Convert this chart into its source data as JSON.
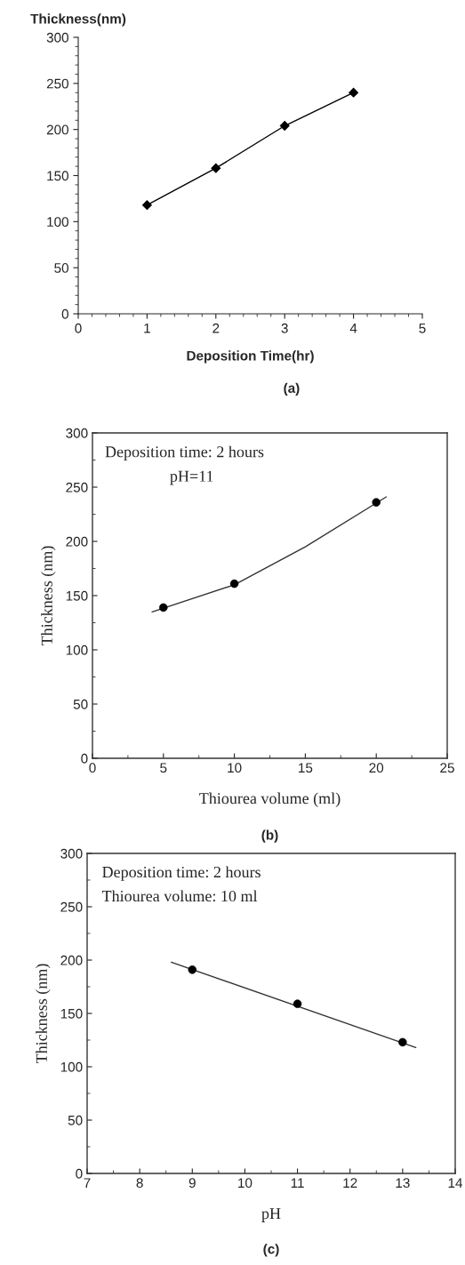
{
  "chart_data": [
    {
      "type": "line",
      "ylabel": "Thickness(nm)",
      "xlabel": "Deposition Time(hr)",
      "x": [
        1,
        2,
        3,
        4
      ],
      "marker": "diamond",
      "series": [
        {
          "color": "#000000",
          "values": [
            118,
            158,
            204,
            240
          ]
        }
      ],
      "xlim": [
        0,
        5
      ],
      "xticks": [
        0,
        1,
        2,
        3,
        4,
        5
      ],
      "ylim": [
        0,
        300
      ],
      "yticks": [
        0,
        50,
        100,
        150,
        200,
        250,
        300
      ],
      "grid": false,
      "legend": false,
      "annotations": [
        "(a)"
      ]
    },
    {
      "type": "scatter",
      "ylabel": "Thickness (nm)",
      "xlabel": "Thiourea volume (ml)",
      "x": [
        5,
        10,
        20
      ],
      "marker": "circle",
      "series": [
        {
          "color": "#000000",
          "values": [
            139,
            161,
            236
          ]
        },
        {
          "type": "line",
          "marker": "none",
          "color": "#333333",
          "x": [
            4.2,
            10,
            15,
            20.7
          ],
          "values": [
            135,
            160,
            195,
            241
          ]
        }
      ],
      "xlim": [
        0,
        25
      ],
      "xticks": [
        0,
        5,
        10,
        15,
        20,
        25
      ],
      "ylim": [
        0,
        300
      ],
      "yticks": [
        0,
        50,
        100,
        150,
        200,
        250,
        300
      ],
      "grid": false,
      "legend": false,
      "annotations": [
        "Deposition time: 2 hours",
        "pH=11",
        "(b)"
      ]
    },
    {
      "type": "scatter",
      "ylabel": "Thickness (nm)",
      "xlabel": "pH",
      "x": [
        9,
        11,
        13
      ],
      "marker": "circle",
      "series": [
        {
          "color": "#000000",
          "values": [
            191,
            159,
            123
          ]
        },
        {
          "type": "line",
          "marker": "none",
          "color": "#333333",
          "x": [
            8.6,
            13.25
          ],
          "values": [
            198,
            118
          ]
        }
      ],
      "xlim": [
        7,
        14
      ],
      "xticks": [
        7,
        8,
        9,
        10,
        11,
        12,
        13,
        14
      ],
      "ylim": [
        0,
        300
      ],
      "yticks": [
        0,
        50,
        100,
        150,
        200,
        250,
        300
      ],
      "grid": false,
      "legend": false,
      "annotations": [
        "Deposition time: 2 hours",
        "Thiourea volume: 10 ml",
        "(c)"
      ]
    }
  ]
}
